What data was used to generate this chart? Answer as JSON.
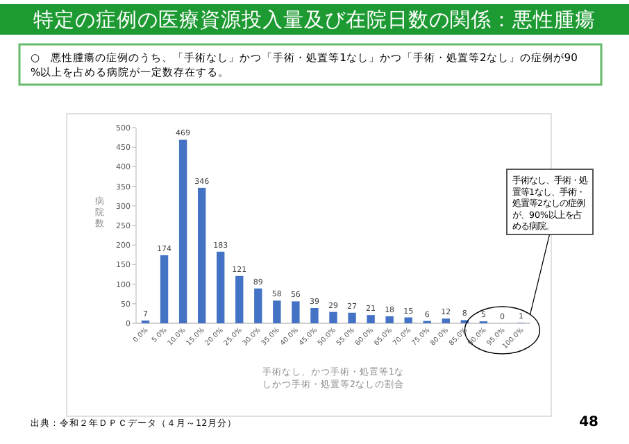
{
  "chart_data": {
    "type": "bar",
    "title": "特定の症例の医療資源投入量及び在院日数の関係：悪性腫瘍",
    "subtitle": "○　悪性腫瘍の症例のうち、「手術なし」かつ「手術・処置等1なし」かつ「手術・処置等2なし」の症例が90%以上を占める病院が一定数存在する。",
    "ylabel": "病院数",
    "xlabel": "手術なし、かつ手術・処置等1なしかつ手術・処置等2なしの割合",
    "categories": [
      "0.0%",
      "5.0%",
      "10.0%",
      "15.0%",
      "20.0%",
      "25.0%",
      "30.0%",
      "35.0%",
      "40.0%",
      "45.0%",
      "50.0%",
      "55.0%",
      "60.0%",
      "65.0%",
      "70.0%",
      "75.0%",
      "80.0%",
      "85.0%",
      "90.0%",
      "95.0%",
      "100.0%"
    ],
    "values": [
      7,
      174,
      469,
      346,
      183,
      121,
      89,
      58,
      56,
      39,
      29,
      27,
      21,
      18,
      15,
      6,
      12,
      8,
      5,
      0,
      1
    ],
    "color": "#4472c4",
    "ylim": [
      0,
      500
    ],
    "yticks": [
      0,
      50,
      100,
      150,
      200,
      250,
      300,
      350,
      400,
      450,
      500
    ],
    "data_labels": true,
    "grid": false,
    "annotations": [
      "手術なし、手術・処置等1なし、手術・処置等2なしの症例が、90%以上を占める病院。",
      "出典：令和２年ＤＰＣデータ（４月～12月分）",
      "48"
    ]
  }
}
